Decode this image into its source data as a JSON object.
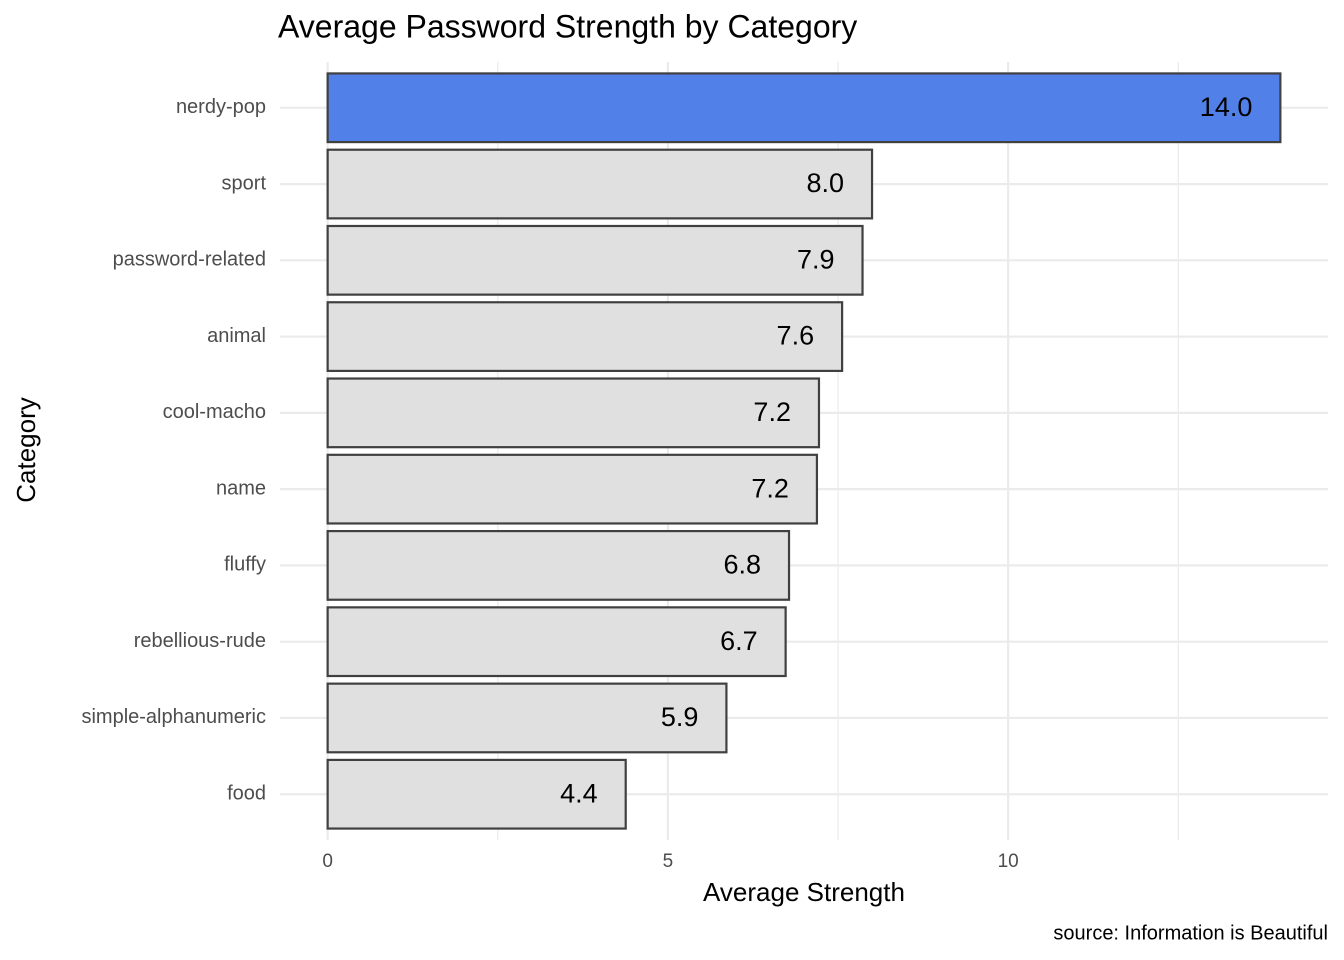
{
  "chart_data": {
    "type": "bar",
    "orientation": "horizontal",
    "title": "Average Password Strength by Category",
    "x_label": "Average Strength",
    "y_label": "Category",
    "caption": "source: Information is Beautiful",
    "categories": [
      "nerdy-pop",
      "sport",
      "password-related",
      "animal",
      "cool-macho",
      "name",
      "fluffy",
      "rebellious-rude",
      "simple-alphanumeric",
      "food"
    ],
    "values": [
      14,
      8,
      7.86,
      7.56,
      7.22,
      7.19,
      6.78,
      6.73,
      5.86,
      4.38
    ],
    "value_labels": [
      "14.0",
      "8.0",
      "7.9",
      "7.6",
      "7.2",
      "7.2",
      "6.8",
      "6.7",
      "5.9",
      "4.4"
    ],
    "colors": [
      "#5180e9",
      "#e0e0e0",
      "#e0e0e0",
      "#e0e0e0",
      "#e0e0e0",
      "#e0e0e0",
      "#e0e0e0",
      "#e0e0e0",
      "#e0e0e0",
      "#e0e0e0"
    ],
    "edge_color": "#404040",
    "xlim": [
      -0.7,
      14.7
    ],
    "xticks": [
      0,
      5,
      10
    ],
    "minor_xticks": [
      2.5,
      7.5,
      12.5
    ],
    "grid": true
  }
}
